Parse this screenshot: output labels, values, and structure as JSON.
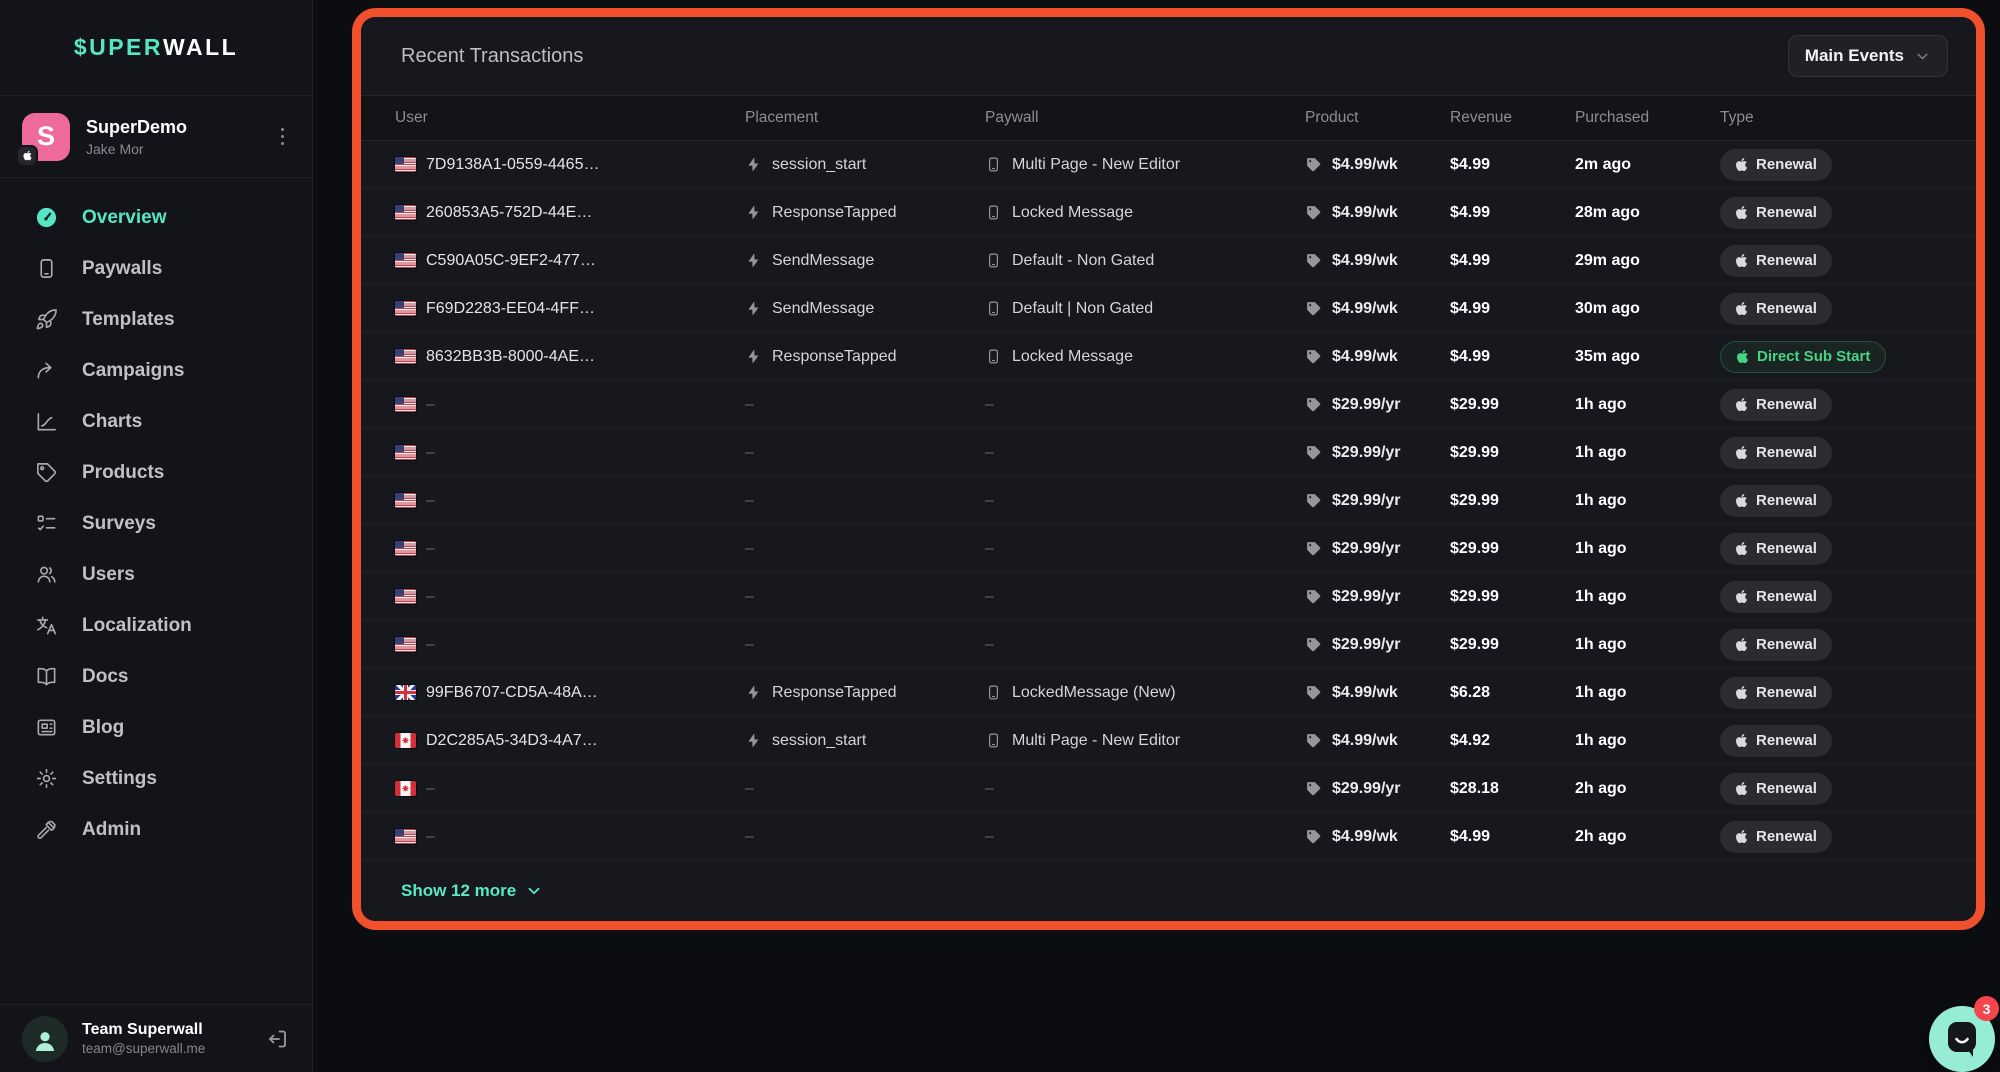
{
  "colors": {
    "accent_teal": "#55e7c4",
    "highlight_border": "#f1502d",
    "success_green": "#46d483",
    "app_icon_pink": "#ee6a9d",
    "badge_bg": "#2b2c32",
    "card_bg": "#17181d",
    "sidebar_bg": "#131419"
  },
  "sidebar": {
    "logo": {
      "accent": "$UPER",
      "rest": "WALL"
    },
    "app": {
      "icon_letter": "S",
      "name": "SuperDemo",
      "owner": "Jake Mor",
      "platform_icon": "apple"
    },
    "items": [
      {
        "id": "overview",
        "label": "Overview",
        "icon": "gauge",
        "active": true
      },
      {
        "id": "paywalls",
        "label": "Paywalls",
        "icon": "phone",
        "active": false
      },
      {
        "id": "templates",
        "label": "Templates",
        "icon": "rocket",
        "active": false
      },
      {
        "id": "campaigns",
        "label": "Campaigns",
        "icon": "share",
        "active": false
      },
      {
        "id": "charts",
        "label": "Charts",
        "icon": "chart",
        "active": false
      },
      {
        "id": "products",
        "label": "Products",
        "icon": "tag",
        "active": false
      },
      {
        "id": "surveys",
        "label": "Surveys",
        "icon": "checklist",
        "active": false
      },
      {
        "id": "users",
        "label": "Users",
        "icon": "users",
        "active": false
      },
      {
        "id": "localization",
        "label": "Localization",
        "icon": "translate",
        "active": false
      },
      {
        "id": "docs",
        "label": "Docs",
        "icon": "book",
        "active": false
      },
      {
        "id": "blog",
        "label": "Blog",
        "icon": "newspaper",
        "active": false
      },
      {
        "id": "settings",
        "label": "Settings",
        "icon": "gear",
        "active": false
      },
      {
        "id": "admin",
        "label": "Admin",
        "icon": "hammer",
        "active": false
      }
    ],
    "footer": {
      "name": "Team Superwall",
      "email": "team@superwall.me"
    }
  },
  "main": {
    "title": "Recent Transactions",
    "filter_button": {
      "label": "Main Events"
    },
    "table": {
      "columns": [
        "User",
        "Placement",
        "Paywall",
        "Product",
        "Revenue",
        "Purchased",
        "Type"
      ],
      "empty_placeholder": "–",
      "rows": [
        {
          "flag": "us",
          "user": "7D9138A1-0559-4465…",
          "placement": "session_start",
          "paywall": "Multi Page - New Editor",
          "product": "$4.99/wk",
          "revenue": "$4.99",
          "purchased": "2m ago",
          "type": {
            "label": "Renewal",
            "variant": "default"
          }
        },
        {
          "flag": "us",
          "user": "260853A5-752D-44E…",
          "placement": "ResponseTapped",
          "paywall": "Locked Message",
          "product": "$4.99/wk",
          "revenue": "$4.99",
          "purchased": "28m ago",
          "type": {
            "label": "Renewal",
            "variant": "default"
          }
        },
        {
          "flag": "us",
          "user": "C590A05C-9EF2-477…",
          "placement": "SendMessage",
          "paywall": "Default - Non Gated",
          "product": "$4.99/wk",
          "revenue": "$4.99",
          "purchased": "29m ago",
          "type": {
            "label": "Renewal",
            "variant": "default"
          }
        },
        {
          "flag": "us",
          "user": "F69D2283-EE04-4FF…",
          "placement": "SendMessage",
          "paywall": "Default | Non Gated",
          "product": "$4.99/wk",
          "revenue": "$4.99",
          "purchased": "30m ago",
          "type": {
            "label": "Renewal",
            "variant": "default"
          }
        },
        {
          "flag": "us",
          "user": "8632BB3B-8000-4AE…",
          "placement": "ResponseTapped",
          "paywall": "Locked Message",
          "product": "$4.99/wk",
          "revenue": "$4.99",
          "purchased": "35m ago",
          "type": {
            "label": "Direct Sub Start",
            "variant": "success"
          }
        },
        {
          "flag": "us",
          "user": null,
          "placement": null,
          "paywall": null,
          "product": "$29.99/yr",
          "revenue": "$29.99",
          "purchased": "1h ago",
          "type": {
            "label": "Renewal",
            "variant": "default"
          }
        },
        {
          "flag": "us",
          "user": null,
          "placement": null,
          "paywall": null,
          "product": "$29.99/yr",
          "revenue": "$29.99",
          "purchased": "1h ago",
          "type": {
            "label": "Renewal",
            "variant": "default"
          }
        },
        {
          "flag": "us",
          "user": null,
          "placement": null,
          "paywall": null,
          "product": "$29.99/yr",
          "revenue": "$29.99",
          "purchased": "1h ago",
          "type": {
            "label": "Renewal",
            "variant": "default"
          }
        },
        {
          "flag": "us",
          "user": null,
          "placement": null,
          "paywall": null,
          "product": "$29.99/yr",
          "revenue": "$29.99",
          "purchased": "1h ago",
          "type": {
            "label": "Renewal",
            "variant": "default"
          }
        },
        {
          "flag": "us",
          "user": null,
          "placement": null,
          "paywall": null,
          "product": "$29.99/yr",
          "revenue": "$29.99",
          "purchased": "1h ago",
          "type": {
            "label": "Renewal",
            "variant": "default"
          }
        },
        {
          "flag": "us",
          "user": null,
          "placement": null,
          "paywall": null,
          "product": "$29.99/yr",
          "revenue": "$29.99",
          "purchased": "1h ago",
          "type": {
            "label": "Renewal",
            "variant": "default"
          }
        },
        {
          "flag": "gb",
          "user": "99FB6707-CD5A-48A…",
          "placement": "ResponseTapped",
          "paywall": "LockedMessage (New)",
          "product": "$4.99/wk",
          "revenue": "$6.28",
          "purchased": "1h ago",
          "type": {
            "label": "Renewal",
            "variant": "default"
          }
        },
        {
          "flag": "ca",
          "user": "D2C285A5-34D3-4A7…",
          "placement": "session_start",
          "paywall": "Multi Page - New Editor",
          "product": "$4.99/wk",
          "revenue": "$4.92",
          "purchased": "1h ago",
          "type": {
            "label": "Renewal",
            "variant": "default"
          }
        },
        {
          "flag": "ca",
          "user": null,
          "placement": null,
          "paywall": null,
          "product": "$29.99/yr",
          "revenue": "$28.18",
          "purchased": "2h ago",
          "type": {
            "label": "Renewal",
            "variant": "default"
          }
        },
        {
          "flag": "us",
          "user": null,
          "placement": null,
          "paywall": null,
          "product": "$4.99/wk",
          "revenue": "$4.99",
          "purchased": "2h ago",
          "type": {
            "label": "Renewal",
            "variant": "default"
          }
        }
      ]
    },
    "show_more": {
      "label": "Show 12 more"
    }
  },
  "chat": {
    "badge_count": "3"
  }
}
